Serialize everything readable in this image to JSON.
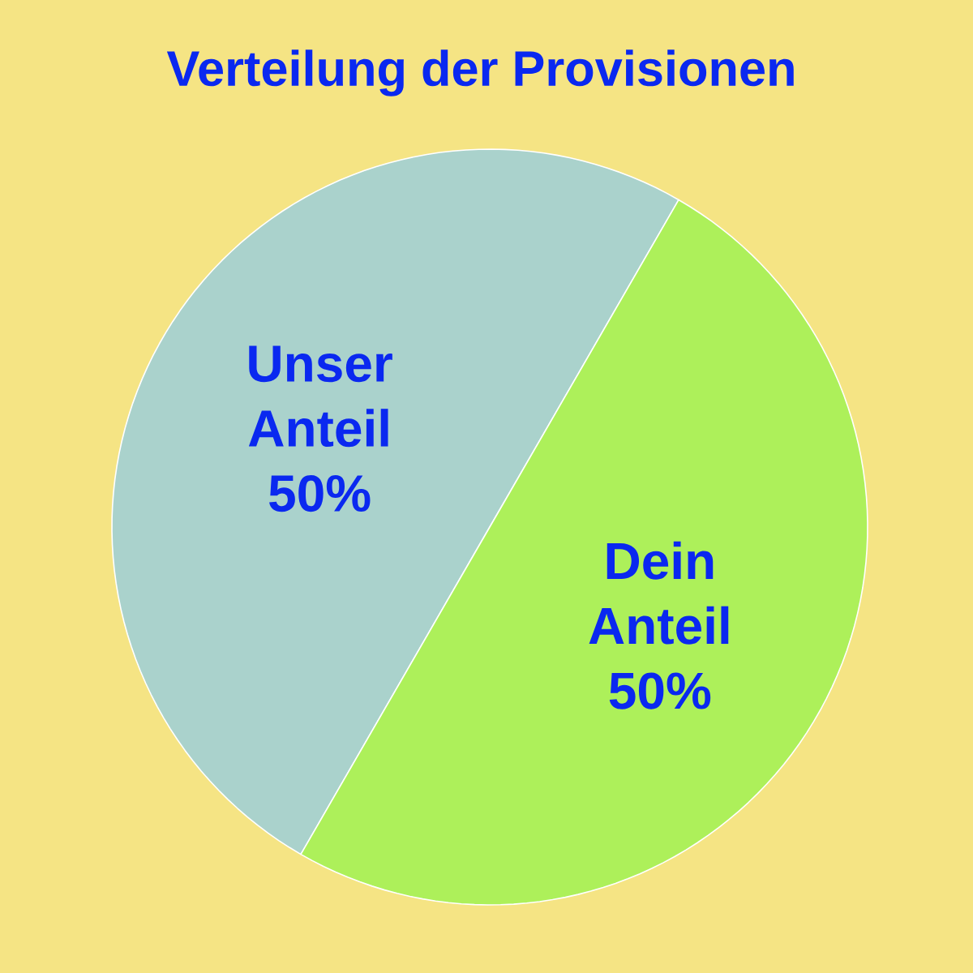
{
  "chart_data": {
    "type": "pie",
    "title": "Verteilung der Provisionen",
    "categories": [
      "Unser Anteil",
      "Dein Anteil"
    ],
    "values": [
      50,
      50
    ],
    "colors": [
      "#aad2cc",
      "#adf05a"
    ],
    "value_labels": [
      "50%",
      "50%"
    ]
  }
}
